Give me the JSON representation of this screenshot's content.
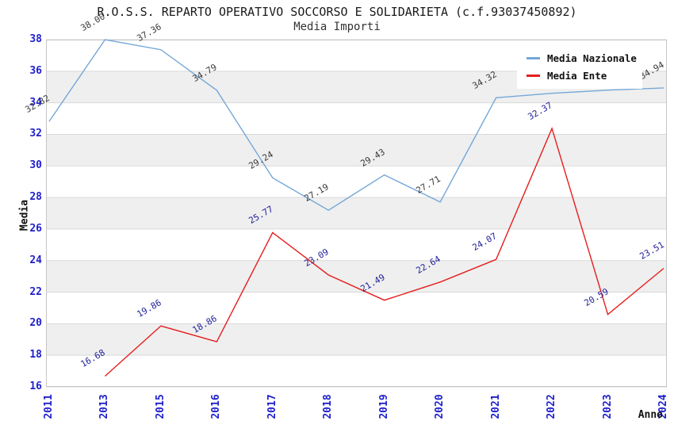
{
  "title": "R.O.S.S. REPARTO OPERATIVO SOCCORSO E SOLIDARIETA (c.f.93037450892)",
  "subtitle": "Media Importi",
  "axes": {
    "x_label": "Anno",
    "y_label": "Media",
    "y_ticks": [
      38,
      36,
      34,
      32,
      30,
      28,
      26,
      24,
      22,
      20,
      18,
      16
    ]
  },
  "legend": {
    "items": [
      {
        "label": "Media Nazionale"
      },
      {
        "label": "Media Ente"
      }
    ]
  },
  "colors": {
    "tick_label": "#1f1fcc",
    "grid_line": "#d9d9d9",
    "plot_border": "#c6c6c6",
    "stripe_fill": "#efefef",
    "nazionale_line": "#74a7d8",
    "ente_line": "#e51d1d",
    "nazionale_point_label": "#3a3a3a",
    "ente_point_label": "#22229b"
  },
  "chart_data": {
    "type": "line",
    "title": "R.O.S.S. REPARTO OPERATIVO SOCCORSO E SOLIDARIETA (c.f.93037450892)",
    "subtitle": "Media Importi",
    "xlabel": "Anno",
    "ylabel": "Media",
    "ylim": [
      16,
      38
    ],
    "grid": true,
    "legend_position": "top-right-inside",
    "categories": [
      "2011",
      "2013",
      "2015",
      "2016",
      "2017",
      "2018",
      "2019",
      "2020",
      "2021",
      "2022",
      "2023",
      "2024"
    ],
    "series": [
      {
        "name": "Media Nazionale",
        "color": "#74a7d8",
        "label_color": "#3a3a3a",
        "values": [
          32.82,
          38.0,
          37.36,
          34.79,
          29.24,
          27.19,
          29.43,
          27.71,
          34.32,
          34.6,
          34.8,
          34.94
        ],
        "note_labels_hidden_by_legend": [
          "2022",
          "2023"
        ]
      },
      {
        "name": "Media Ente",
        "color": "#e51d1d",
        "label_color": "#22229b",
        "values": [
          null,
          16.68,
          19.86,
          18.86,
          25.77,
          23.09,
          21.49,
          22.64,
          24.07,
          32.37,
          20.59,
          23.51
        ]
      }
    ]
  }
}
